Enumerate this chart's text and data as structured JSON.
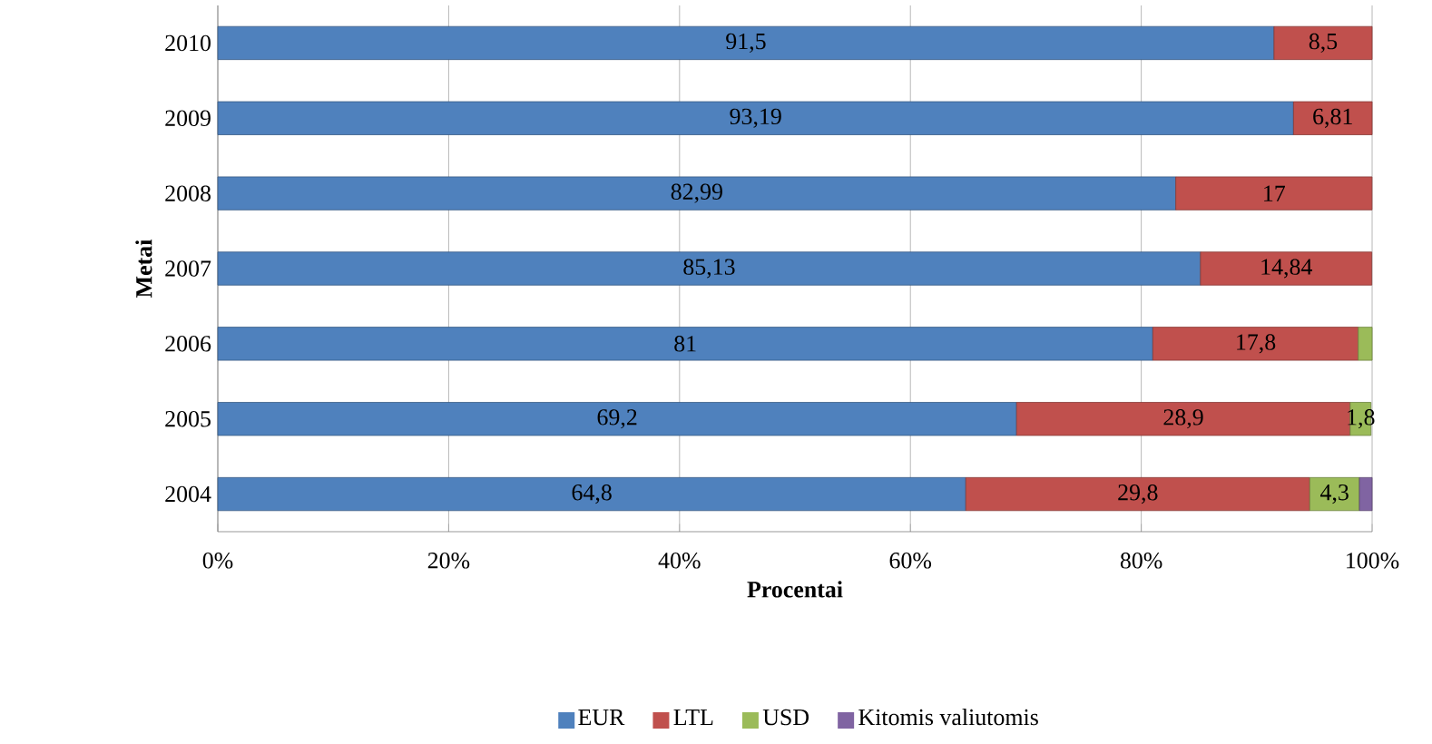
{
  "chart_data": {
    "type": "bar",
    "orientation": "horizontal",
    "stacked": true,
    "xlabel": "Procentai",
    "ylabel": "Metai",
    "categories": [
      "2010",
      "2009",
      "2008",
      "2007",
      "2006",
      "2005",
      "2004"
    ],
    "series": [
      {
        "name": "EUR",
        "color": "#4f81bd",
        "values": [
          91.5,
          93.19,
          82.99,
          85.13,
          81,
          69.2,
          64.8
        ],
        "value_labels": [
          "91,5",
          "93,19",
          "82,99",
          "85,13",
          "81",
          "69,2",
          "64,8"
        ]
      },
      {
        "name": "LTL",
        "color": "#c0504d",
        "values": [
          8.5,
          6.81,
          17,
          14.84,
          17.8,
          28.9,
          29.8
        ],
        "value_labels": [
          "8,5",
          "6,81",
          "17",
          "14,84",
          "17,8",
          "28,9",
          "29,8"
        ]
      },
      {
        "name": "USD",
        "color": "#9bbb59",
        "values": [
          null,
          null,
          null,
          null,
          1.2,
          1.8,
          4.3
        ],
        "value_labels": [
          null,
          null,
          null,
          null,
          null,
          "1,8",
          "4,3"
        ]
      },
      {
        "name": "Kitomis valiutomis",
        "color": "#8064a2",
        "values": [
          null,
          null,
          null,
          null,
          null,
          null,
          1.1
        ],
        "value_labels": [
          null,
          null,
          null,
          null,
          null,
          null,
          null
        ]
      }
    ],
    "xlim": [
      0,
      100
    ],
    "xticks": [
      {
        "value": 0,
        "label": "0%"
      },
      {
        "value": 20,
        "label": "20%"
      },
      {
        "value": 40,
        "label": "40%"
      },
      {
        "value": 60,
        "label": "60%"
      },
      {
        "value": 80,
        "label": "80%"
      },
      {
        "value": 100,
        "label": "100%"
      }
    ],
    "grid": "x",
    "legend": "bottom"
  }
}
